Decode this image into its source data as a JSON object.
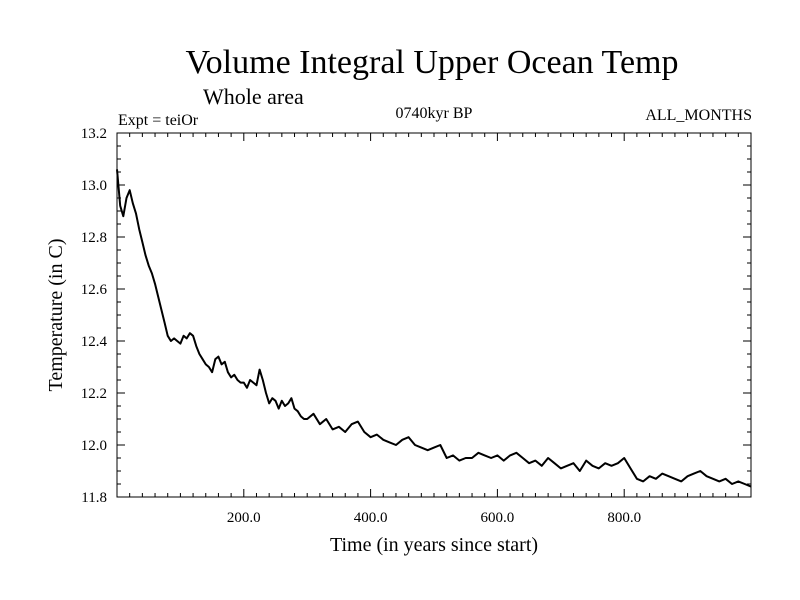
{
  "chart_data": {
    "type": "line",
    "title": "Volume Integral Upper Ocean Temp",
    "subtitle": "Whole area",
    "experiment": "Expt = teiOr",
    "period": "0740kyr BP",
    "months": "ALL_MONTHS",
    "xlabel": "Time (in years since start)",
    "ylabel": "Temperature (in C)",
    "xlim": [
      0,
      1000
    ],
    "ylim": [
      11.8,
      13.2
    ],
    "xticks": [
      200,
      400,
      600,
      800
    ],
    "xtick_labels": [
      "200.0",
      "400.0",
      "600.0",
      "800.0"
    ],
    "yticks": [
      11.8,
      12.0,
      12.2,
      12.4,
      12.6,
      12.8,
      13.0,
      13.2
    ],
    "ytick_labels": [
      "11.8",
      "12.0",
      "12.2",
      "12.4",
      "12.6",
      "12.8",
      "13.0",
      "13.2"
    ],
    "grid": false,
    "series": [
      {
        "name": "teiOr",
        "color": "#000000",
        "x": [
          0,
          5,
          10,
          15,
          20,
          25,
          30,
          35,
          40,
          45,
          50,
          55,
          60,
          65,
          70,
          75,
          80,
          85,
          90,
          95,
          100,
          105,
          110,
          115,
          120,
          125,
          130,
          135,
          140,
          145,
          150,
          155,
          160,
          165,
          170,
          175,
          180,
          185,
          190,
          195,
          200,
          205,
          210,
          215,
          220,
          225,
          230,
          235,
          240,
          245,
          250,
          255,
          260,
          265,
          270,
          275,
          280,
          285,
          290,
          295,
          300,
          310,
          320,
          330,
          340,
          350,
          360,
          370,
          380,
          390,
          400,
          410,
          420,
          430,
          440,
          450,
          460,
          470,
          480,
          490,
          500,
          510,
          520,
          530,
          540,
          550,
          560,
          570,
          580,
          590,
          600,
          610,
          620,
          630,
          640,
          650,
          660,
          670,
          680,
          690,
          700,
          710,
          720,
          730,
          740,
          750,
          760,
          770,
          780,
          790,
          800,
          810,
          820,
          830,
          840,
          850,
          860,
          870,
          880,
          890,
          900,
          910,
          920,
          930,
          940,
          950,
          960,
          970,
          980,
          990,
          1000
        ],
        "values": [
          13.06,
          12.92,
          12.88,
          12.95,
          12.98,
          12.93,
          12.89,
          12.83,
          12.78,
          12.73,
          12.69,
          12.66,
          12.62,
          12.57,
          12.52,
          12.47,
          12.42,
          12.4,
          12.41,
          12.4,
          12.39,
          12.42,
          12.41,
          12.43,
          12.42,
          12.38,
          12.35,
          12.33,
          12.31,
          12.3,
          12.28,
          12.33,
          12.34,
          12.31,
          12.32,
          12.28,
          12.26,
          12.27,
          12.25,
          12.24,
          12.24,
          12.22,
          12.25,
          12.24,
          12.23,
          12.29,
          12.25,
          12.2,
          12.16,
          12.18,
          12.17,
          12.14,
          12.17,
          12.15,
          12.16,
          12.18,
          12.14,
          12.13,
          12.11,
          12.1,
          12.1,
          12.12,
          12.08,
          12.1,
          12.06,
          12.07,
          12.05,
          12.08,
          12.09,
          12.05,
          12.03,
          12.04,
          12.02,
          12.01,
          12.0,
          12.02,
          12.03,
          12.0,
          11.99,
          11.98,
          11.99,
          12.0,
          11.95,
          11.96,
          11.94,
          11.95,
          11.95,
          11.97,
          11.96,
          11.95,
          11.96,
          11.94,
          11.96,
          11.97,
          11.95,
          11.93,
          11.94,
          11.92,
          11.95,
          11.93,
          11.91,
          11.92,
          11.93,
          11.9,
          11.94,
          11.92,
          11.91,
          11.93,
          11.92,
          11.93,
          11.95,
          11.91,
          11.87,
          11.86,
          11.88,
          11.87,
          11.89,
          11.88,
          11.87,
          11.86,
          11.88,
          11.89,
          11.9,
          11.88,
          11.87,
          11.86,
          11.87,
          11.85,
          11.86,
          11.85,
          11.84
        ]
      }
    ]
  }
}
